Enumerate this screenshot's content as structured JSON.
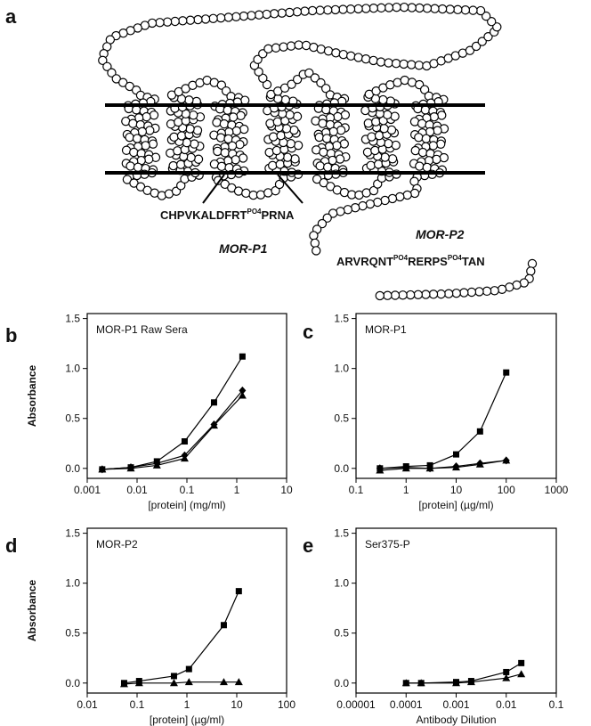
{
  "diagram": {
    "label": "a",
    "peptide_p1": [
      "CHPVKALDFRT",
      "PO4",
      "PRNA"
    ],
    "name_p1": "MOR-P1",
    "name_p2": "MOR-P2",
    "peptide_p2": [
      "ARVRQNT",
      "PO4",
      "RERPS",
      "PO4",
      "TAN"
    ]
  },
  "chart_data": [
    {
      "type": "line",
      "panel": "b",
      "title": "MOR-P1 Raw  Sera",
      "xlabel": "[protein] (mg/ml)",
      "ylabel": "Absorbance",
      "xscale": "log",
      "xlim": [
        0.001,
        10
      ],
      "xticks": [
        0.001,
        0.01,
        0.1,
        1,
        10
      ],
      "ylim": [
        -0.1,
        1.55
      ],
      "yticks": [
        {
          "value": 0,
          "label": "0.0"
        },
        0.5,
        {
          "value": 1,
          "label": "1.0"
        },
        1.5
      ],
      "x": [
        0.002,
        0.0075,
        0.025,
        0.09,
        0.35,
        1.3
      ],
      "series": [
        {
          "color": "#000000",
          "marker": "square",
          "values": [
            -0.01,
            0.01,
            0.07,
            0.27,
            0.66,
            1.12
          ]
        },
        {
          "color": "#000000",
          "marker": "triangle",
          "values": [
            -0.01,
            0.0,
            0.03,
            0.1,
            0.43,
            0.73
          ]
        },
        {
          "color": "#000000",
          "marker": "diamond",
          "values": [
            -0.01,
            0.01,
            0.05,
            0.13,
            0.44,
            0.78
          ]
        }
      ]
    },
    {
      "type": "line",
      "panel": "c",
      "title": "MOR-P1",
      "xlabel": "[protein] (µg/ml)",
      "xscale": "log",
      "xlim": [
        0.1,
        1000
      ],
      "xticks": [
        0.1,
        1,
        10,
        100,
        1000
      ],
      "ylim": [
        -0.1,
        1.55
      ],
      "yticks": [
        {
          "value": 0,
          "label": "0.0"
        },
        0.5,
        {
          "value": 1,
          "label": "1.0"
        },
        1.5
      ],
      "x": [
        0.3,
        1,
        3,
        10,
        30,
        100
      ],
      "series": [
        {
          "color": "#000000",
          "marker": "square",
          "values": [
            0.0,
            0.02,
            0.03,
            0.14,
            0.37,
            0.96
          ]
        },
        {
          "color": "#000000",
          "marker": "triangle",
          "values": [
            -0.02,
            0.0,
            0.0,
            0.01,
            0.04,
            0.08
          ]
        },
        {
          "color": "#000000",
          "marker": "diamond",
          "values": [
            0.0,
            0.01,
            0.0,
            0.02,
            0.05,
            0.08
          ]
        }
      ]
    },
    {
      "type": "line",
      "panel": "d",
      "title": "MOR-P2",
      "xlabel": "[protein] (µg/ml)",
      "ylabel": "Absorbance",
      "xscale": "log",
      "xlim": [
        0.01,
        100
      ],
      "xticks": [
        0.01,
        0.1,
        1,
        10,
        100
      ],
      "ylim": [
        -0.1,
        1.55
      ],
      "yticks": [
        {
          "value": 0,
          "label": "0.0"
        },
        0.5,
        {
          "value": 1,
          "label": "1.0"
        },
        1.5
      ],
      "x": [
        0.055,
        0.11,
        0.55,
        1.1,
        5.5,
        11
      ],
      "series": [
        {
          "color": "#000000",
          "marker": "square",
          "values": [
            0.0,
            0.02,
            0.07,
            0.14,
            0.58,
            0.92
          ]
        },
        {
          "color": "#000000",
          "marker": "triangle",
          "values": [
            -0.01,
            0.0,
            0.0,
            0.01,
            0.01,
            0.01
          ]
        }
      ]
    },
    {
      "type": "line",
      "panel": "e",
      "title": "Ser375-P",
      "xlabel": "Antibody Dilution",
      "xscale": "log",
      "xlim": [
        1e-05,
        0.1
      ],
      "xticks": [
        1e-05,
        0.0001,
        0.001,
        0.01,
        0.1
      ],
      "ylim": [
        -0.1,
        1.55
      ],
      "yticks": [
        {
          "value": 0,
          "label": "0.0"
        },
        0.5,
        {
          "value": 1,
          "label": "1.0"
        },
        1.5
      ],
      "x": [
        0.0001,
        0.0002,
        0.001,
        0.002,
        0.01,
        0.02
      ],
      "series": [
        {
          "color": "#000000",
          "marker": "square",
          "values": [
            0.0,
            0.0,
            0.01,
            0.02,
            0.11,
            0.2
          ]
        },
        {
          "color": "#000000",
          "marker": "triangle",
          "values": [
            0.0,
            0.0,
            0.0,
            0.01,
            0.05,
            0.09
          ]
        }
      ]
    }
  ]
}
